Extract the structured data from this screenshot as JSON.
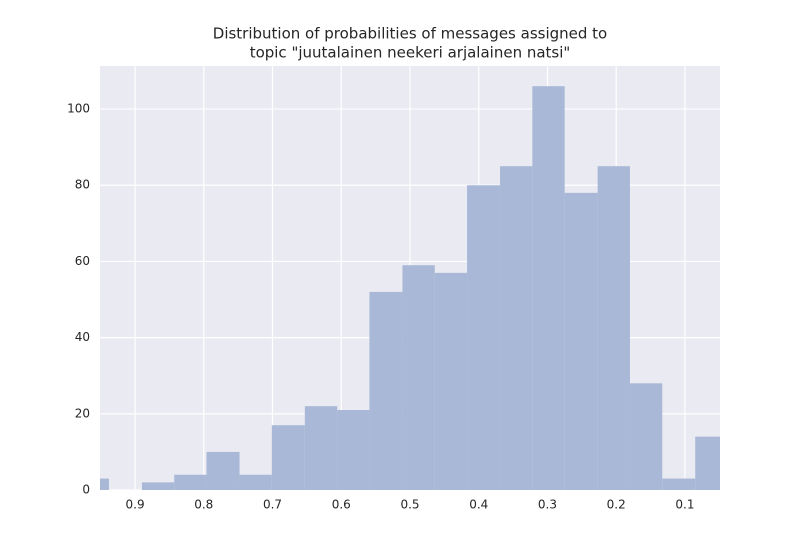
{
  "chart_data": {
    "type": "histogram",
    "title": [
      "Distribution of probabilities of messages assigned to",
      "topic \"juutalainen neekeri arjalainen natsi\""
    ],
    "bins": [
      0.985,
      0.938,
      0.89,
      0.843,
      0.796,
      0.748,
      0.701,
      0.653,
      0.606,
      0.559,
      0.511,
      0.464,
      0.417,
      0.369,
      0.322,
      0.275,
      0.227,
      0.18,
      0.133,
      0.085,
      0.038
    ],
    "values": [
      3,
      0,
      2,
      4,
      10,
      4,
      17,
      22,
      21,
      52,
      59,
      57,
      80,
      85,
      106,
      78,
      85,
      28,
      3,
      14
    ],
    "color": "#a8b8d6",
    "xlim": [
      0.951,
      0.049
    ],
    "xticks": [
      0.9,
      0.8,
      0.7,
      0.6,
      0.5,
      0.4,
      0.3,
      0.2,
      0.1
    ],
    "ylim": [
      0,
      111.3
    ],
    "yticks": [
      0,
      20,
      40,
      60,
      80,
      100
    ],
    "grid": true
  }
}
